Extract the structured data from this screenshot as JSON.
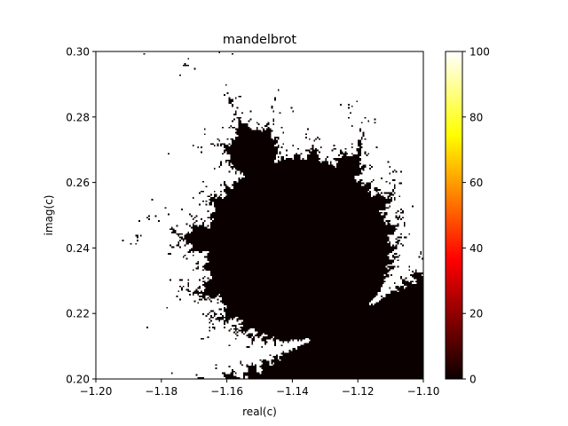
{
  "chart_data": {
    "type": "heatmap",
    "title": "mandelbrot",
    "xlabel": "real(c)",
    "ylabel": "imag(c)",
    "xlim": [
      -1.2,
      -1.1
    ],
    "ylim": [
      0.2,
      0.3
    ],
    "x_ticks": [
      -1.2,
      -1.18,
      -1.16,
      -1.14,
      -1.12,
      -1.1
    ],
    "x_tick_labels": [
      "−1.20",
      "−1.18",
      "−1.16",
      "−1.14",
      "−1.12",
      "−1.10"
    ],
    "y_ticks": [
      0.2,
      0.22,
      0.24,
      0.26,
      0.28,
      0.3
    ],
    "y_tick_labels": [
      "0.20",
      "0.22",
      "0.24",
      "0.26",
      "0.28",
      "0.30"
    ],
    "value_quantity": "escape iteration count",
    "max_iterations": 100,
    "colormap": "hot",
    "colorbar": {
      "range": [
        0,
        100
      ],
      "ticks": [
        0,
        20,
        40,
        60,
        80,
        100
      ],
      "tick_labels": [
        "0",
        "20",
        "40",
        "60",
        "80",
        "100"
      ]
    },
    "grid": false
  }
}
